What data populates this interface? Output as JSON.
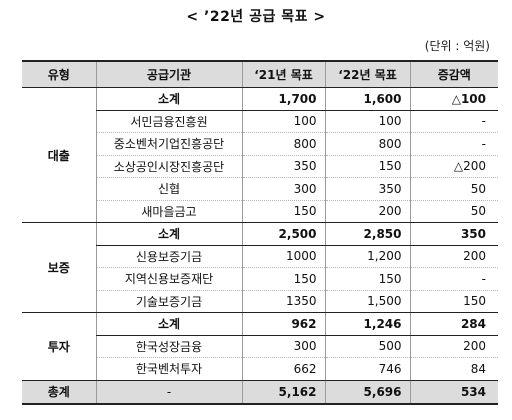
{
  "title": "< ’22년 공급 목표 >",
  "unit": "(단위 : 억원)",
  "headers": {
    "type": "유형",
    "institution": "공급기관",
    "y21": "‘21년 목표",
    "y22": "‘22년 목표",
    "diff": "증감액"
  },
  "groups": {
    "loan": {
      "type": "대출",
      "subtotal": {
        "label": "소계",
        "y21": "1,700",
        "y22": "1,600",
        "diff": "△100"
      },
      "rows": [
        {
          "name": "서민금융진흥원",
          "y21": "100",
          "y22": "100",
          "diff": "-"
        },
        {
          "name": "중소벤처기업진흥공단",
          "y21": "800",
          "y22": "800",
          "diff": "-"
        },
        {
          "name": "소상공인시장진흥공단",
          "y21": "350",
          "y22": "150",
          "diff": "△200"
        },
        {
          "name": "신협",
          "y21": "300",
          "y22": "350",
          "diff": "50"
        },
        {
          "name": "새마을금고",
          "y21": "150",
          "y22": "200",
          "diff": "50"
        }
      ]
    },
    "guarantee": {
      "type": "보증",
      "subtotal": {
        "label": "소계",
        "y21": "2,500",
        "y22": "2,850",
        "diff": "350"
      },
      "rows": [
        {
          "name": "신용보증기금",
          "y21": "1000",
          "y22": "1,200",
          "diff": "200"
        },
        {
          "name": "지역신용보증재단",
          "y21": "150",
          "y22": "150",
          "diff": "-"
        },
        {
          "name": "기술보증기금",
          "y21": "1350",
          "y22": "1,500",
          "diff": "150"
        }
      ]
    },
    "investment": {
      "type": "투자",
      "subtotal": {
        "label": "소계",
        "y21": "962",
        "y22": "1,246",
        "diff": "284"
      },
      "rows": [
        {
          "name": "한국성장금융",
          "y21": "300",
          "y22": "500",
          "diff": "200"
        },
        {
          "name": "한국벤처투자",
          "y21": "662",
          "y22": "746",
          "diff": "84"
        }
      ]
    }
  },
  "total": {
    "label": "총계",
    "institution": "-",
    "y21": "5,162",
    "y22": "5,696",
    "diff": "534"
  }
}
